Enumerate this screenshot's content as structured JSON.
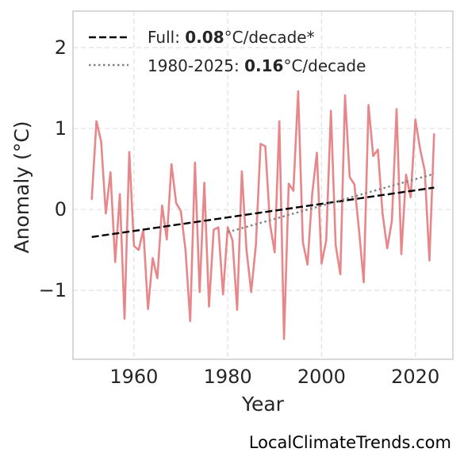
{
  "chart_data": {
    "type": "line",
    "xlabel": "Year",
    "ylabel": "Anomaly (°C)",
    "xlim": [
      1947,
      2028
    ],
    "ylim": [
      -1.85,
      2.45
    ],
    "x_ticks": [
      1960,
      1980,
      2000,
      2020
    ],
    "y_ticks": [
      2,
      1,
      0,
      -1
    ],
    "y_tick_labels": [
      "2",
      "1",
      "0",
      "−1"
    ],
    "grid": true,
    "legend_position": "top-left",
    "series": [
      {
        "color": "#e8878a",
        "x": [
          1951,
          1952,
          1953,
          1954,
          1955,
          1956,
          1957,
          1958,
          1959,
          1960,
          1961,
          1962,
          1963,
          1964,
          1965,
          1966,
          1967,
          1968,
          1969,
          1970,
          1971,
          1972,
          1973,
          1974,
          1975,
          1976,
          1977,
          1978,
          1979,
          1980,
          1981,
          1982,
          1983,
          1984,
          1985,
          1986,
          1987,
          1988,
          1989,
          1990,
          1991,
          1992,
          1993,
          1994,
          1995,
          1996,
          1997,
          1998,
          1999,
          2000,
          2001,
          2002,
          2003,
          2004,
          2005,
          2006,
          2007,
          2008,
          2009,
          2010,
          2011,
          2012,
          2013,
          2014,
          2015,
          2016,
          2017,
          2018,
          2019,
          2020,
          2021,
          2022,
          2023,
          2024
        ],
        "y": [
          0.13,
          1.09,
          0.84,
          -0.05,
          0.46,
          -0.65,
          0.19,
          -1.35,
          0.71,
          -0.45,
          -0.5,
          -0.25,
          -1.23,
          -0.6,
          -0.85,
          0.05,
          -0.37,
          0.56,
          0.08,
          -0.02,
          -0.5,
          -1.38,
          0.58,
          -1.02,
          0.33,
          -1.2,
          -0.25,
          -0.22,
          -1.05,
          -0.22,
          -0.38,
          -1.24,
          0.47,
          -0.5,
          -1.02,
          -0.44,
          0.81,
          0.78,
          -0.18,
          -0.53,
          1.09,
          -1.6,
          0.32,
          0.23,
          1.46,
          -0.4,
          -0.68,
          0.19,
          0.7,
          -0.67,
          -0.38,
          1.22,
          -0.44,
          -0.8,
          1.41,
          0.4,
          0.31,
          -0.26,
          -0.9,
          1.29,
          0.66,
          0.74,
          -0.05,
          -0.48,
          -0.14,
          1.24,
          -0.55,
          0.43,
          0.15,
          1.11,
          0.75,
          0.48,
          -0.63,
          0.93
        ]
      }
    ],
    "trends": [
      {
        "label_prefix": "Full: ",
        "label_value": "0.08",
        "label_suffix": "°C/decade*",
        "style": "dashed",
        "color": "#000000",
        "x": [
          1951,
          2024
        ],
        "y": [
          -0.34,
          0.27
        ]
      },
      {
        "label_prefix": "1980-2025: ",
        "label_value": "0.16",
        "label_suffix": "°C/decade",
        "style": "dotted",
        "color": "#808080",
        "x": [
          1980,
          2024
        ],
        "y": [
          -0.28,
          0.44
        ]
      }
    ]
  },
  "credit": "LocalClimateTrends.com"
}
